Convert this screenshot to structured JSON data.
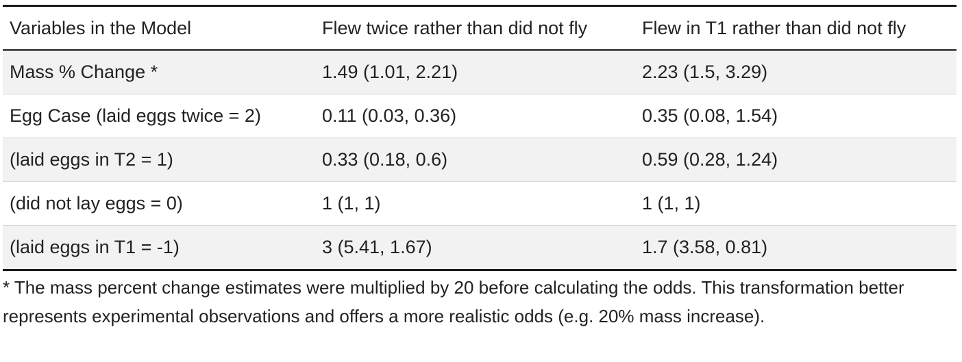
{
  "table": {
    "headers": [
      "Variables in the Model",
      "Flew twice rather than did not fly",
      "Flew in T1 rather than did not fly"
    ],
    "rows": [
      {
        "variable": "Mass % Change *",
        "flew_twice": "1.49 (1.01, 2.21)",
        "flew_t1": "2.23 (1.5, 3.29)"
      },
      {
        "variable": "Egg Case (laid eggs twice = 2)",
        "flew_twice": "0.11 (0.03, 0.36)",
        "flew_t1": "0.35 (0.08, 1.54)"
      },
      {
        "variable": "(laid eggs in T2 = 1)",
        "flew_twice": "0.33 (0.18, 0.6)",
        "flew_t1": "0.59 (0.28, 1.24)"
      },
      {
        "variable": "(did not lay eggs = 0)",
        "flew_twice": "1 (1, 1)",
        "flew_t1": "1 (1, 1)"
      },
      {
        "variable": "(laid eggs in T1 = -1)",
        "flew_twice": "3 (5.41, 1.67)",
        "flew_t1": "1.7 (3.58, 0.81)"
      }
    ]
  },
  "footnote": "* The mass percent change estimates were multiplied by 20 before calculating the odds. This transformation better represents experimental observations and offers a more realistic odds (e.g. 20% mass increase)."
}
